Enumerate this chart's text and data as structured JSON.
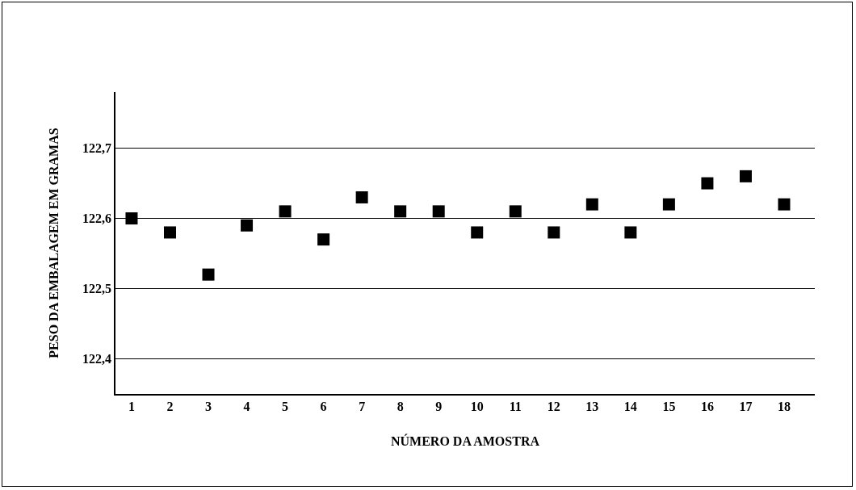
{
  "chart_data": {
    "type": "scatter",
    "xlabel": "NÚMERO DA AMOSTRA",
    "ylabel": "PESO DA EMBALAGEM EM GRAMAS",
    "x": [
      1,
      2,
      3,
      4,
      5,
      6,
      7,
      8,
      9,
      10,
      11,
      12,
      13,
      14,
      15,
      16,
      17,
      18
    ],
    "series": [
      {
        "color": "#000000",
        "values": [
          122.6,
          122.58,
          122.52,
          122.59,
          122.61,
          122.57,
          122.63,
          122.61,
          122.61,
          122.58,
          122.61,
          122.58,
          122.62,
          122.58,
          122.62,
          122.65,
          122.66,
          122.62
        ]
      }
    ],
    "xlim": [
      0.58,
      18.8
    ],
    "xticks": [
      1,
      2,
      3,
      4,
      5,
      6,
      7,
      8,
      9,
      10,
      11,
      12,
      13,
      14,
      15,
      16,
      17,
      18
    ],
    "ylim": [
      122.35,
      122.78
    ],
    "yticks": [
      {
        "value": 122.4,
        "label": "122,4"
      },
      {
        "value": 122.5,
        "label": "122,5"
      },
      {
        "value": 122.6,
        "label": "122,6"
      },
      {
        "value": 122.7,
        "label": "122,7"
      }
    ],
    "grid": "y",
    "marker": "square"
  }
}
